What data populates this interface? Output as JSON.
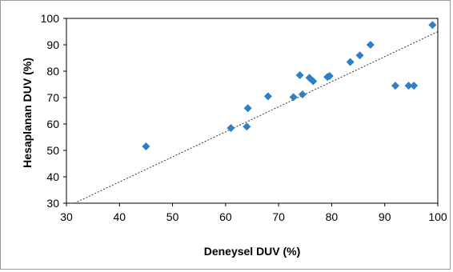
{
  "chart_data": {
    "type": "scatter",
    "title": "",
    "xlabel": "Deneysel DUV (%)",
    "ylabel": "Hesaplanan DUV (%)",
    "xlim": [
      30,
      100
    ],
    "ylim": [
      30,
      100
    ],
    "xticks": [
      "30",
      "40",
      "50",
      "60",
      "70",
      "80",
      "90",
      "100"
    ],
    "yticks": [
      "30",
      "40",
      "50",
      "60",
      "70",
      "80",
      "90",
      "100"
    ],
    "grid": false,
    "legend": "none",
    "marker": "diamond",
    "marker_color": "#2E7FC4",
    "series": [
      {
        "points": [
          [
            45,
            51.5
          ],
          [
            61,
            58.5
          ],
          [
            64,
            59
          ],
          [
            64.2,
            66
          ],
          [
            68,
            70.5
          ],
          [
            72.8,
            70.2
          ],
          [
            74,
            78.5
          ],
          [
            74.5,
            71.2
          ],
          [
            75.8,
            77.5
          ],
          [
            76.5,
            76.2
          ],
          [
            79.2,
            77.8
          ],
          [
            79.6,
            78.2
          ],
          [
            83.5,
            83.5
          ],
          [
            85.3,
            86
          ],
          [
            87.3,
            90
          ],
          [
            92,
            74.5
          ],
          [
            94.5,
            74.5
          ],
          [
            95.5,
            74.5
          ],
          [
            99,
            97.5
          ]
        ]
      }
    ],
    "trendline": {
      "type": "linear",
      "style": "dotted",
      "color": "#333333",
      "from": [
        31.5,
        30
      ],
      "to": [
        100,
        95
      ]
    }
  }
}
